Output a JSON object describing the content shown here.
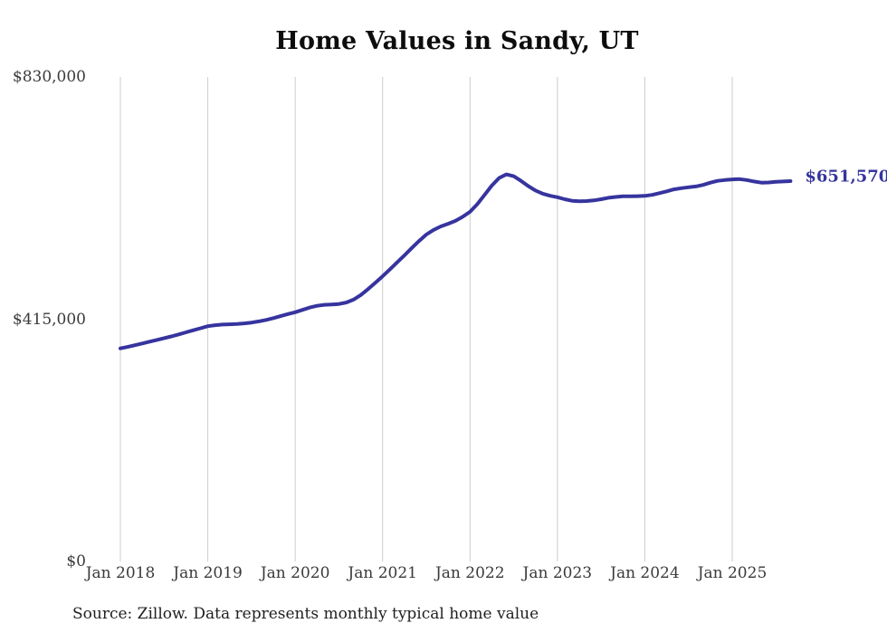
{
  "page": {
    "background": "#ffffff"
  },
  "chart_data": {
    "type": "line",
    "title": "Home Values in Sandy, UT",
    "source_note": "Source: Zillow. Data represents monthly typical home value",
    "end_label": "$651,570",
    "end_value": 651570,
    "line_color": "#36349e",
    "grid_color": "#cccccc",
    "tick_color": "#3a3a3a",
    "legend_position": "none",
    "grid": "vertical-only",
    "ylim": [
      0,
      830000
    ],
    "y_ticks": [
      {
        "label": "$830,000",
        "value": 830000
      },
      {
        "label": "$415,000",
        "value": 415000
      },
      {
        "label": "$0",
        "value": 0
      }
    ],
    "x_tick_labels": [
      "Jan 2018",
      "Jan 2019",
      "Jan 2020",
      "Jan 2021",
      "Jan 2022",
      "Jan 2023",
      "Jan 2024",
      "Jan 2025"
    ],
    "series_name": "Typical home value (monthly)",
    "start_month": "Jan 2018",
    "end_month": "Sep 2025",
    "frequency": "monthly",
    "values": [
      365000,
      367500,
      370500,
      373500,
      376500,
      379500,
      382500,
      385500,
      389000,
      392500,
      396000,
      399500,
      403000,
      404800,
      405800,
      406300,
      406800,
      407800,
      409300,
      411300,
      413800,
      416800,
      420300,
      423800,
      427000,
      431000,
      435000,
      438000,
      439600,
      440300,
      441000,
      443500,
      448500,
      456500,
      466500,
      477500,
      488500,
      500500,
      512500,
      524500,
      537000,
      549000,
      560000,
      568000,
      574000,
      578500,
      583500,
      590500,
      599000,
      612000,
      628000,
      644000,
      657000,
      663000,
      660000,
      652000,
      643000,
      635500,
      630000,
      626500,
      624000,
      620500,
      618000,
      617000,
      617500,
      618500,
      620500,
      623000,
      624500,
      625500,
      625500,
      625800,
      626300,
      628000,
      631000,
      634000,
      637500,
      639500,
      641000,
      642500,
      645000,
      649000,
      652000,
      653500,
      654500,
      655000,
      653500,
      651000,
      649000,
      649300,
      650300,
      651000,
      651570
    ]
  }
}
